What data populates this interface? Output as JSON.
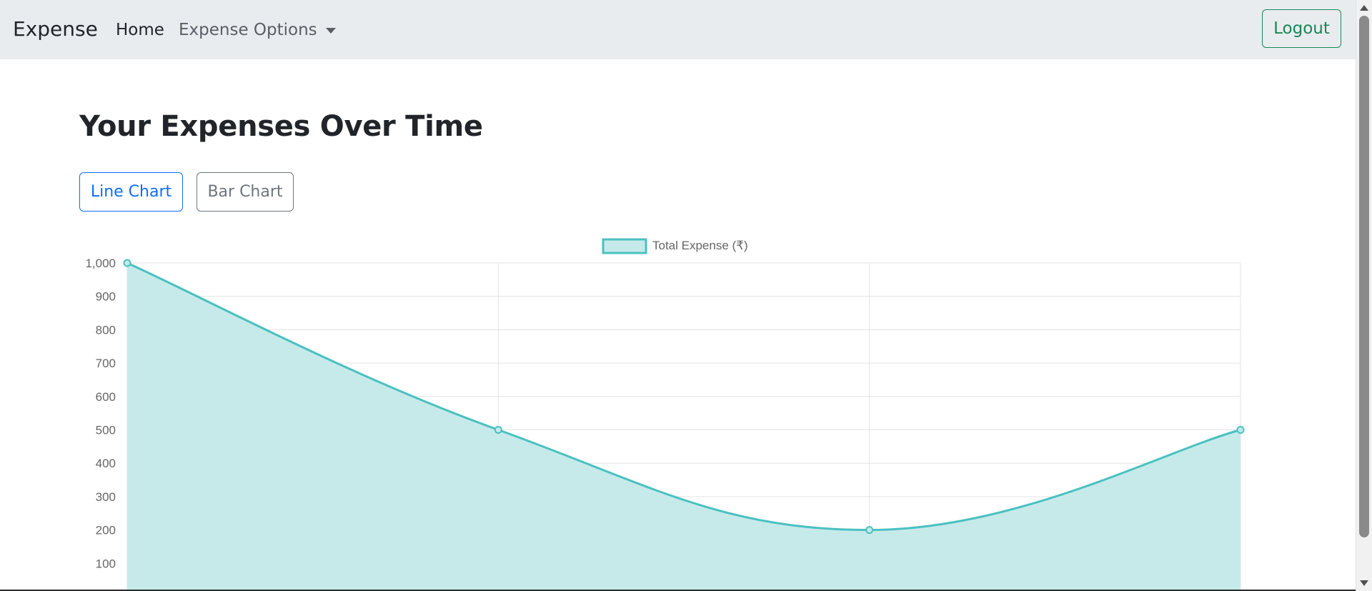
{
  "navbar": {
    "brand": "Expense",
    "home": "Home",
    "expense_options": "Expense Options",
    "logout": "Logout"
  },
  "main": {
    "title": "Your Expenses Over Time",
    "buttons": {
      "line_chart": "Line Chart",
      "bar_chart": "Bar Chart"
    }
  },
  "chart_data": {
    "type": "line",
    "fill": true,
    "x": [
      "",
      "",
      "",
      ""
    ],
    "series": [
      {
        "name": "Total Expense (₹)",
        "values": [
          1000,
          500,
          200,
          500
        ],
        "color": "#4bc0c0",
        "fill_color": "#c6eaea"
      }
    ],
    "y_ticks": [
      "1,000",
      "900",
      "800",
      "700",
      "600",
      "500",
      "400",
      "300",
      "200",
      "100"
    ],
    "ylim": [
      0,
      1000
    ],
    "grid": true,
    "legend_position": "top-center"
  },
  "colors": {
    "navbar_bg": "#e9ecef",
    "success": "#198754",
    "primary": "#0d6efd",
    "secondary": "#6c757d"
  }
}
